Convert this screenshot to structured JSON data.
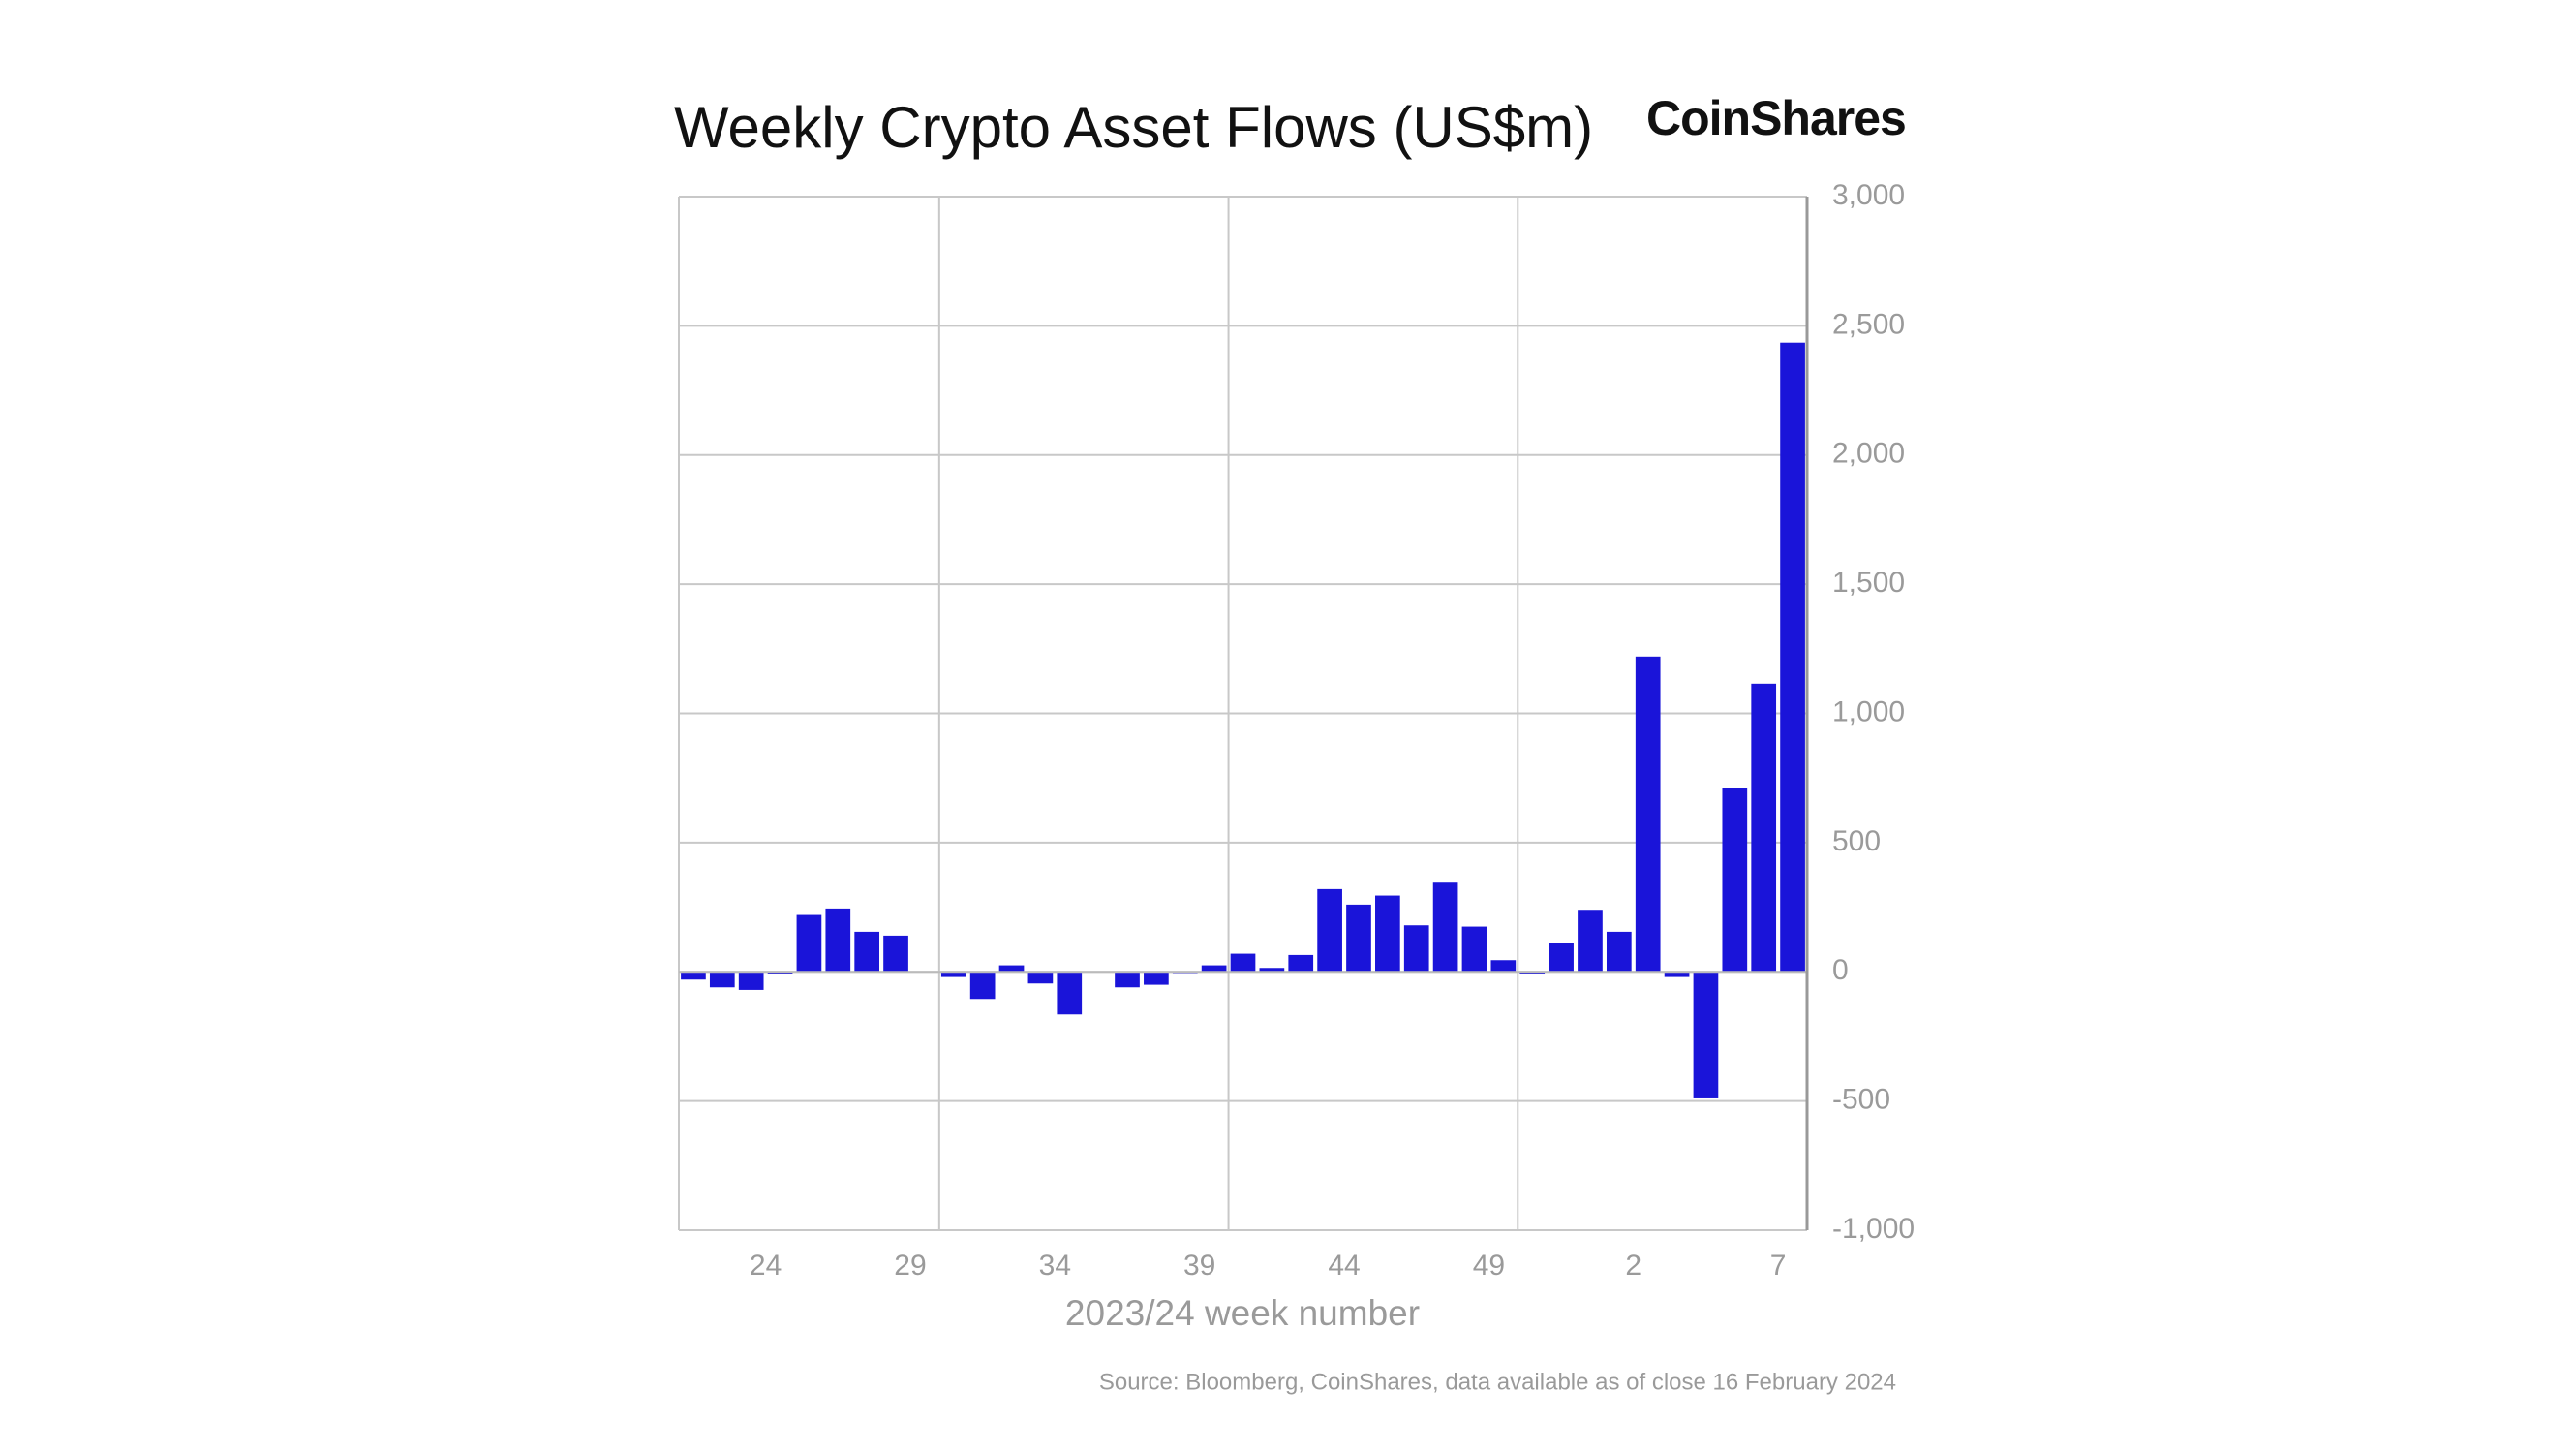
{
  "chart_data": {
    "type": "bar",
    "title": "Weekly Crypto Asset Flows (US$m)",
    "brand": "CoinShares",
    "x_label": "2023/24 week number",
    "source": "Source: Bloomberg, CoinShares, data available as of close 16 February 2024",
    "categories": [
      null,
      null,
      null,
      "24",
      null,
      null,
      null,
      null,
      "29",
      null,
      null,
      null,
      null,
      "34",
      null,
      null,
      null,
      null,
      "39",
      null,
      null,
      null,
      null,
      "44",
      null,
      null,
      null,
      null,
      "49",
      null,
      null,
      null,
      null,
      "2",
      null,
      null,
      null,
      null,
      "7"
    ],
    "values": [
      -30,
      -60,
      -70,
      -10,
      220,
      245,
      155,
      140,
      0,
      -20,
      -105,
      25,
      -45,
      -165,
      0,
      -60,
      -50,
      -5,
      25,
      70,
      15,
      65,
      320,
      260,
      295,
      180,
      345,
      175,
      45,
      -10,
      110,
      240,
      155,
      1220,
      -20,
      -490,
      710,
      1115,
      2435
    ],
    "color": "#1a14d9",
    "ylim": [
      -1000,
      3000
    ],
    "yticks": [
      {
        "value": -1000,
        "label": "-1,000"
      },
      -500,
      0,
      500,
      {
        "value": 1000,
        "label": "1,000"
      },
      {
        "value": 1500,
        "label": "1,500"
      },
      {
        "value": 2000,
        "label": "2,000"
      },
      {
        "value": 2500,
        "label": "2,500"
      },
      {
        "value": 3000,
        "label": "3,000"
      }
    ],
    "grid": true
  }
}
